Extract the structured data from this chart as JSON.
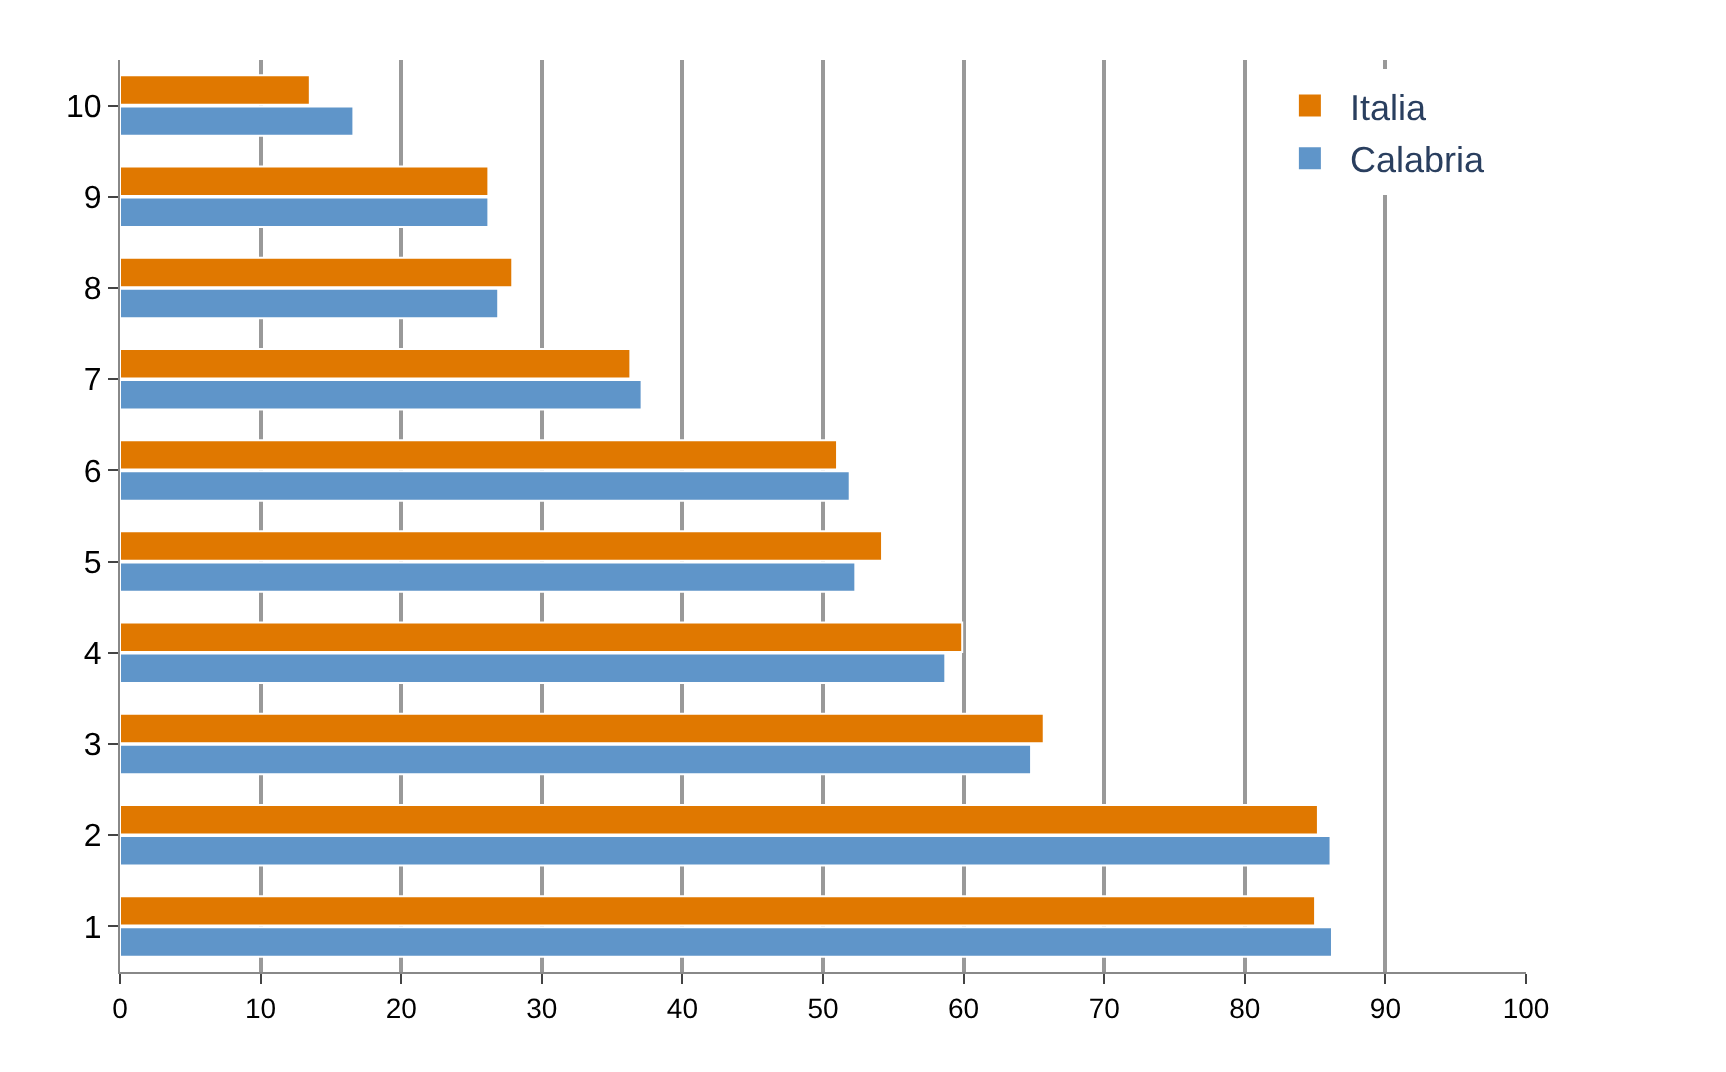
{
  "chart_data": {
    "type": "bar",
    "orientation": "horizontal",
    "categories": [
      "10",
      "9",
      "8",
      "7",
      "6",
      "5",
      "4",
      "3",
      "2",
      "1"
    ],
    "series": [
      {
        "name": "Italia",
        "color": "#e07800",
        "values": [
          13.5,
          26.2,
          27.9,
          36.3,
          51.0,
          54.2,
          59.9,
          65.7,
          85.2,
          85.0
        ]
      },
      {
        "name": "Calabria",
        "color": "#5f95c9",
        "values": [
          16.6,
          26.2,
          26.9,
          37.1,
          51.9,
          52.3,
          58.7,
          64.8,
          86.1,
          86.2
        ]
      }
    ],
    "xlim": [
      0,
      100
    ],
    "xticks": [
      0,
      10,
      20,
      30,
      40,
      50,
      60,
      70,
      80,
      90,
      100
    ],
    "grid": "x",
    "legend": "top right"
  }
}
